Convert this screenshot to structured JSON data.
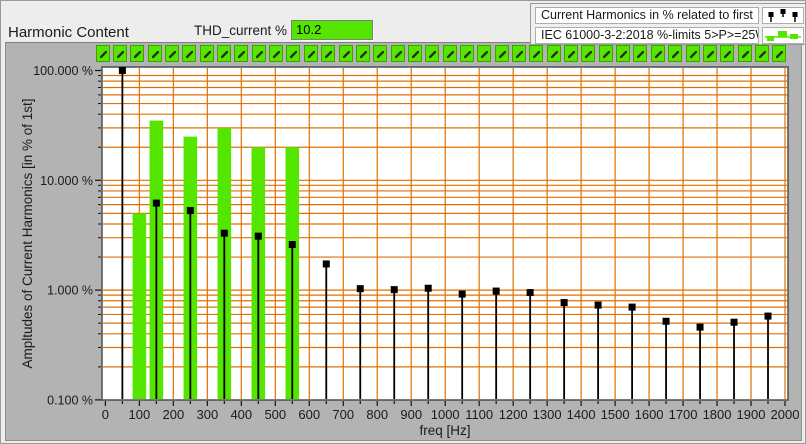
{
  "header": {
    "title": "Harmonic Content",
    "thd_label": "THD_current %",
    "thd_value": "10.2",
    "thd_box_color": "#55E600"
  },
  "legend": {
    "items": [
      {
        "label": "Current Harmonics in % related to first",
        "icon": "stem-plot-icon"
      },
      {
        "label": "IEC 61000-3-2:2018 %-limits 5>P>=25W",
        "icon": "limit-bars-icon"
      }
    ]
  },
  "harmonic_toggles": {
    "count": 40,
    "color": "#55E600",
    "glyph": "cursor-icon"
  },
  "chart_data": {
    "type": "stem+bar",
    "title": "",
    "x_axis": {
      "label": "freq [Hz]",
      "min": 0,
      "max": 2000,
      "major_tick": 100,
      "minor_tick": 50
    },
    "y_axis": {
      "label": "Ampltudes of Current Harmonics [in % of 1st]",
      "scale": "log",
      "min": 0.1,
      "max": 100,
      "ticks": [
        {
          "value": 100,
          "label": "100.000 %"
        },
        {
          "value": 10,
          "label": "10.000 %"
        },
        {
          "value": 1,
          "label": "1.000 %"
        },
        {
          "value": 0.1,
          "label": "0.100 %"
        }
      ]
    },
    "grid": {
      "color": "#E07000",
      "x_spacing_hz": 100,
      "y_minor": "log-decade-lines"
    },
    "series": [
      {
        "name": "Current Harmonics in % related to first",
        "type": "stem",
        "color": "#000000",
        "points": [
          [
            50,
            100
          ],
          [
            150,
            6.2
          ],
          [
            250,
            5.3
          ],
          [
            350,
            3.3
          ],
          [
            450,
            3.1
          ],
          [
            550,
            2.6
          ],
          [
            650,
            1.73
          ],
          [
            750,
            1.03
          ],
          [
            850,
            1.01
          ],
          [
            950,
            1.04
          ],
          [
            1050,
            0.92
          ],
          [
            1150,
            0.98
          ],
          [
            1250,
            0.95
          ],
          [
            1350,
            0.77
          ],
          [
            1450,
            0.73
          ],
          [
            1550,
            0.7
          ],
          [
            1650,
            0.52
          ],
          [
            1750,
            0.46
          ],
          [
            1850,
            0.51
          ],
          [
            1950,
            0.58
          ]
        ]
      },
      {
        "name": "IEC 61000-3-2:2018 %-limits 5>P>=25W",
        "type": "bar",
        "color": "#55E600",
        "bar_width_hz": 40,
        "points": [
          [
            100,
            5
          ],
          [
            150,
            35
          ],
          [
            250,
            25
          ],
          [
            350,
            30
          ],
          [
            450,
            20
          ],
          [
            550,
            20
          ]
        ]
      }
    ]
  }
}
